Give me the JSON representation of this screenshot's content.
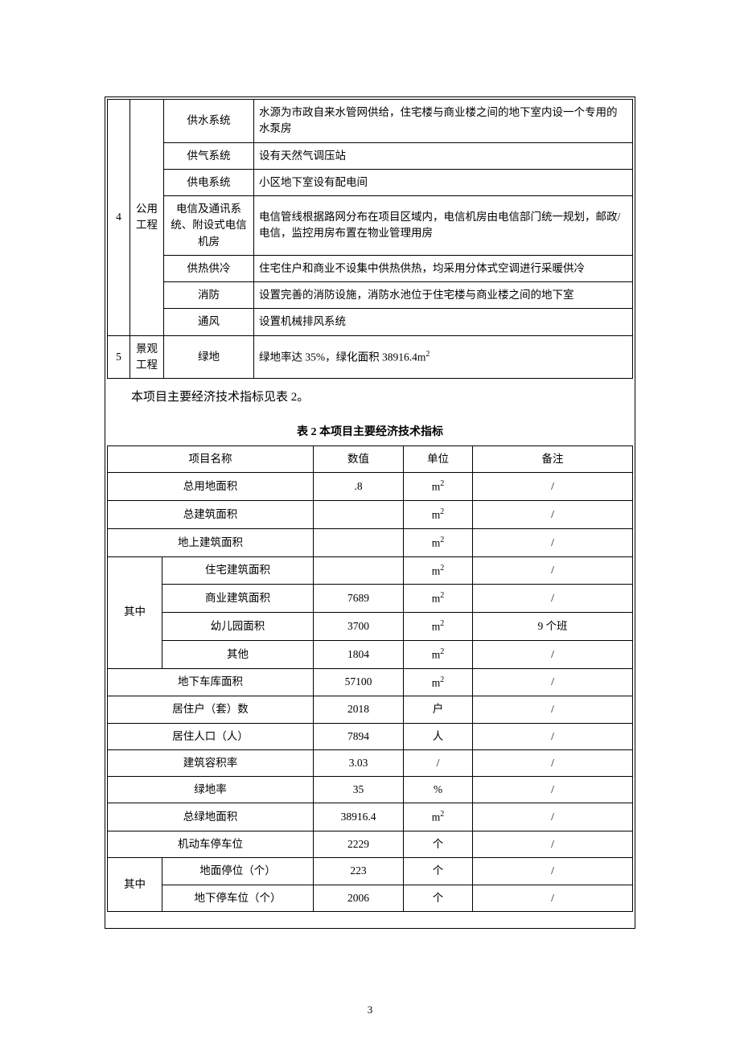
{
  "table1": {
    "rows": [
      {
        "num": "4",
        "category": "公用工程",
        "subs": [
          {
            "item": "供水系统",
            "desc": "水源为市政自来水管网供给，住宅楼与商业楼之间的地下室内设一个专用的水泵房"
          },
          {
            "item": "供气系统",
            "desc": "设有天然气调压站"
          },
          {
            "item": "供电系统",
            "desc": "小区地下室设有配电间"
          },
          {
            "item": "电信及通讯系统、附设式电信机房",
            "desc": "电信管线根据路网分布在项目区域内，电信机房由电信部门统一规划，邮政/电信，监控用房布置在物业管理用房"
          },
          {
            "item": "供热供冷",
            "desc": "住宅住户和商业不设集中供热供热，均采用分体式空调进行采暖供冷"
          },
          {
            "item": "消防",
            "desc": "设置完善的消防设施，消防水池位于住宅楼与商业楼之间的地下室"
          },
          {
            "item": "通风",
            "desc": "设置机械排风系统"
          }
        ]
      },
      {
        "num": "5",
        "category": "景观工程",
        "subs": [
          {
            "item": "绿地",
            "desc": "绿地率达 35%，绿化面积 38916.4m²"
          }
        ]
      }
    ]
  },
  "intro_text": "本项目主要经济技术指标见表 2。",
  "table2": {
    "caption": "表 2   本项目主要经济技术指标",
    "headers": {
      "name": "项目名称",
      "value": "数值",
      "unit": "单位",
      "note": "备注"
    },
    "rows": [
      {
        "name": "总用地面积",
        "value": ".8",
        "unit": "m²",
        "note": "/"
      },
      {
        "name": "总建筑面积",
        "value": "",
        "unit": "m²",
        "note": "/"
      },
      {
        "name": "地上建筑面积",
        "value": "",
        "unit": "m²",
        "note": "/"
      }
    ],
    "sub1_label": "其中",
    "sub1_rows": [
      {
        "name": "住宅建筑面积",
        "value": "",
        "unit": "m²",
        "note": "/"
      },
      {
        "name": "商业建筑面积",
        "value": "7689",
        "unit": "m²",
        "note": "/"
      },
      {
        "name": "幼儿园面积",
        "value": "3700",
        "unit": "m²",
        "note": "9 个班"
      },
      {
        "name": "其他",
        "value": "1804",
        "unit": "m²",
        "note": "/"
      }
    ],
    "rows2": [
      {
        "name": "地下车库面积",
        "value": "57100",
        "unit": "m²",
        "note": "/"
      },
      {
        "name": "居住户（套）数",
        "value": "2018",
        "unit": "户",
        "note": "/"
      },
      {
        "name": "居住人口（人）",
        "value": "7894",
        "unit": "人",
        "note": "/"
      },
      {
        "name": "建筑容积率",
        "value": "3.03",
        "unit": "/",
        "note": "/"
      },
      {
        "name": "绿地率",
        "value": "35",
        "unit": "%",
        "note": "/"
      },
      {
        "name": "总绿地面积",
        "value": "38916.4",
        "unit": "m²",
        "note": "/"
      },
      {
        "name": "机动车停车位",
        "value": "2229",
        "unit": "个",
        "note": "/"
      }
    ],
    "sub2_label": "其中",
    "sub2_rows": [
      {
        "name": "地面停位（个）",
        "value": "223",
        "unit": "个",
        "note": "/"
      },
      {
        "name": "地下停车位（个）",
        "value": "2006",
        "unit": "个",
        "note": "/"
      }
    ]
  },
  "page_number": "3"
}
